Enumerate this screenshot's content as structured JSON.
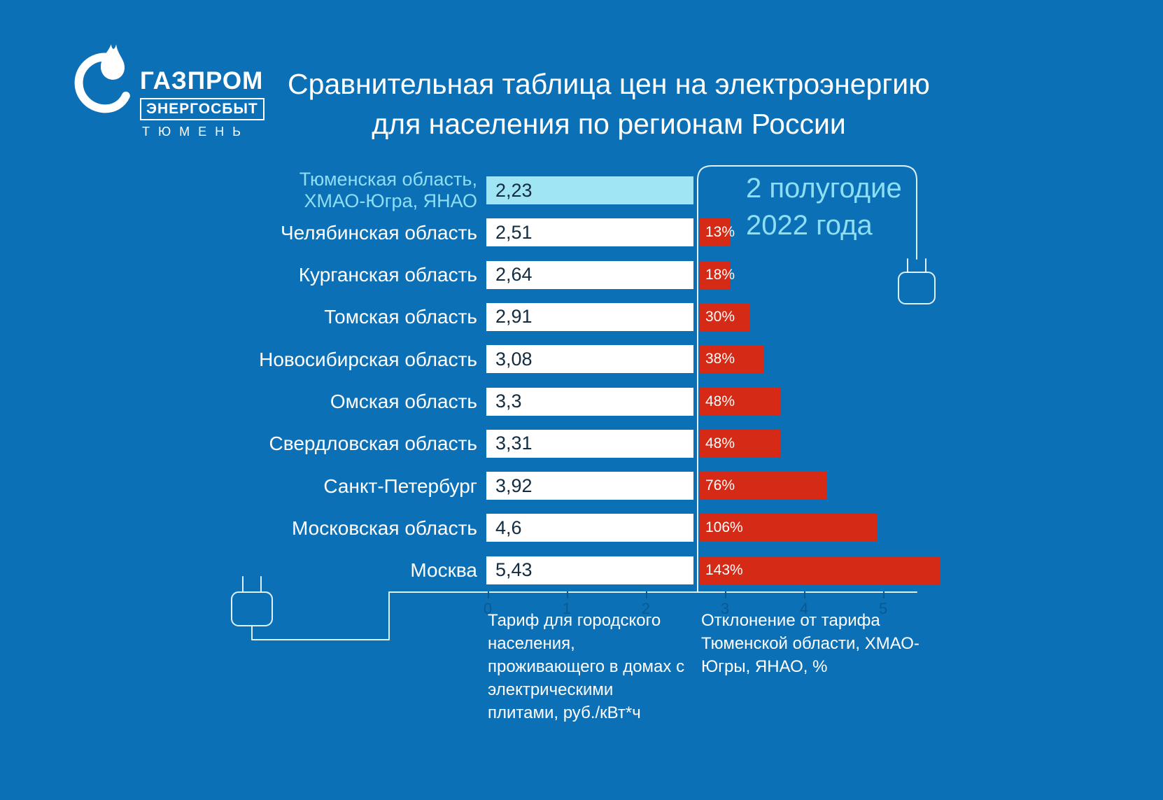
{
  "colors": {
    "background": "#0c70b6",
    "accent_cyan": "#8edff5",
    "highlight_bar": "#9fe5f4",
    "bar_white": "#ffffff",
    "bar_red": "#d52b16",
    "value_text": "#122c42",
    "axis_text": "#0a5a92"
  },
  "logo": {
    "icon": "gazprom-flame",
    "brand": "ГАЗПРОМ",
    "sub": "ЭНЕРГОСБЫТ",
    "city": "ТЮМЕНЬ"
  },
  "title": {
    "line1": "Сравнительная таблица цен на электроэнергию",
    "line2": "для населения по регионам России"
  },
  "period": {
    "line1": "2 полугодие",
    "line2": "2022 года"
  },
  "chart_data": {
    "type": "bar",
    "orientation": "horizontal",
    "title": "Сравнительная таблица цен на электроэнергию для населения по регионам России",
    "period": "2 полугодие 2022 года",
    "categories": [
      "Тюменская область,\nХМАО-Югра, ЯНАО",
      "Челябинская область",
      "Курганская область",
      "Томская область",
      "Новосибирская область",
      "Омская область",
      "Свердловская область",
      "Санкт-Петербург",
      "Московская область",
      "Москва"
    ],
    "highlight_index": 0,
    "series": [
      {
        "name": "Тариф для городского населения, проживающего в домах с электрическими плитами, руб./кВт*ч",
        "values": [
          2.23,
          2.51,
          2.64,
          2.91,
          3.08,
          3.3,
          3.31,
          3.92,
          4.6,
          5.43
        ],
        "labels": [
          "2,23",
          "2,51",
          "2,64",
          "2,91",
          "3,08",
          "3,3",
          "3,31",
          "3,92",
          "4,6",
          "5,43"
        ]
      },
      {
        "name": "Отклонение от тарифа Тюменской области, ХМАО-Югры, ЯНАО, %",
        "values": [
          null,
          13,
          18,
          30,
          38,
          48,
          48,
          76,
          106,
          143
        ],
        "labels": [
          null,
          "13%",
          "18%",
          "30%",
          "38%",
          "48%",
          "48%",
          "76%",
          "106%",
          "143%"
        ]
      }
    ],
    "axis": {
      "min": 0,
      "max": 5,
      "ticks": [
        "0",
        "1",
        "2",
        "3",
        "4",
        "5"
      ]
    },
    "grid": false,
    "legend_position": "bottom-footnotes"
  }
}
